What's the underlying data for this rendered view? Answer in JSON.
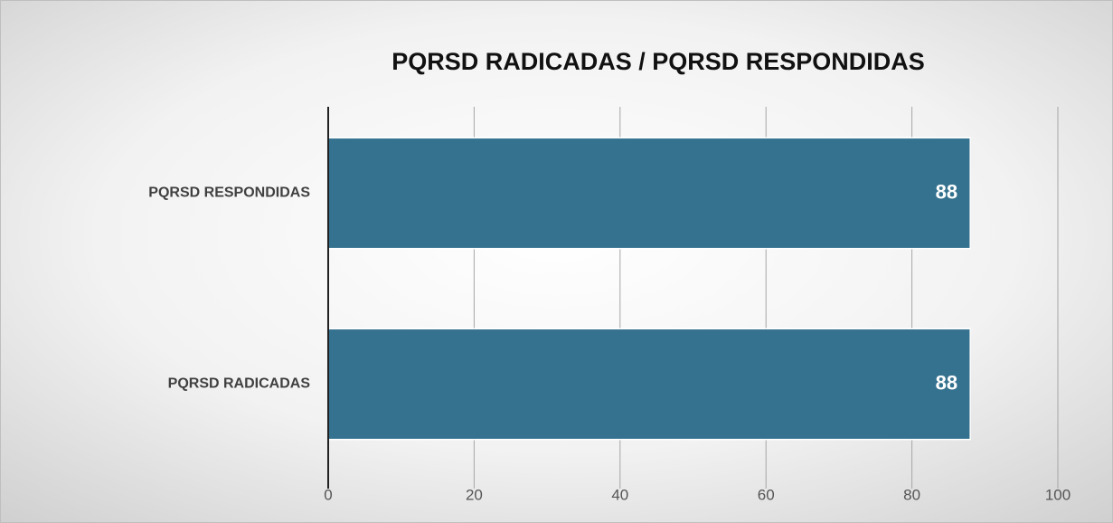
{
  "chart_data": {
    "type": "hbar",
    "title": "PQRSD RADICADAS / PQRSD RESPONDIDAS",
    "categories": [
      "PQRSD RESPONDIDAS",
      "PQRSD RADICADAS"
    ],
    "values": [
      88,
      88
    ],
    "color": "#35728f",
    "xlim": [
      0,
      100
    ],
    "xticks": [
      0,
      20,
      40,
      60,
      80,
      100
    ],
    "grid": true
  }
}
